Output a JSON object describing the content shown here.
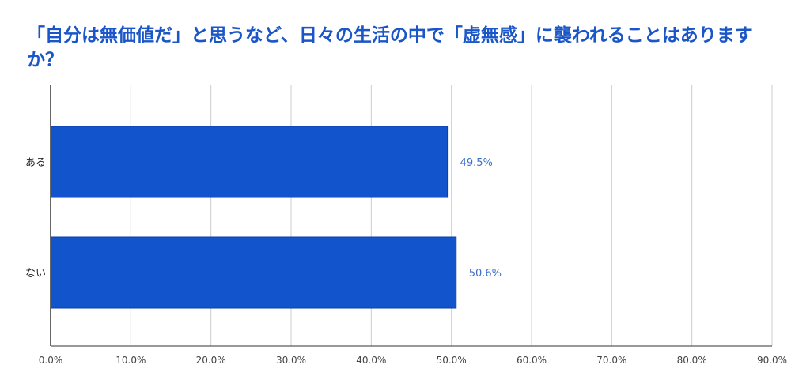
{
  "chart_data": {
    "type": "bar",
    "orientation": "horizontal",
    "title": "「自分は無価値だ」と思うなど、日々の生活の中で「虚無感」に襲われることはありますか？",
    "categories": [
      "ある",
      "ない"
    ],
    "values": [
      49.5,
      50.6
    ],
    "data_labels": [
      "49.5%",
      "50.6%"
    ],
    "xlim": [
      0,
      90
    ],
    "x_ticks": [
      0,
      10,
      20,
      30,
      40,
      50,
      60,
      70,
      80,
      90
    ],
    "x_tick_labels": [
      "0.0%",
      "10.0%",
      "20.0%",
      "30.0%",
      "40.0%",
      "50.0%",
      "60.0%",
      "70.0%",
      "80.0%",
      "90.0%"
    ],
    "grid": true,
    "legend": "none",
    "colors": {
      "bar": "#1154cc",
      "bar_border": "#0b3fa6",
      "title": "#1a56c8",
      "data_label": "#3d6fc9",
      "grid": "#cccccc",
      "axis": "#333333",
      "tick_text": "#444444"
    }
  }
}
